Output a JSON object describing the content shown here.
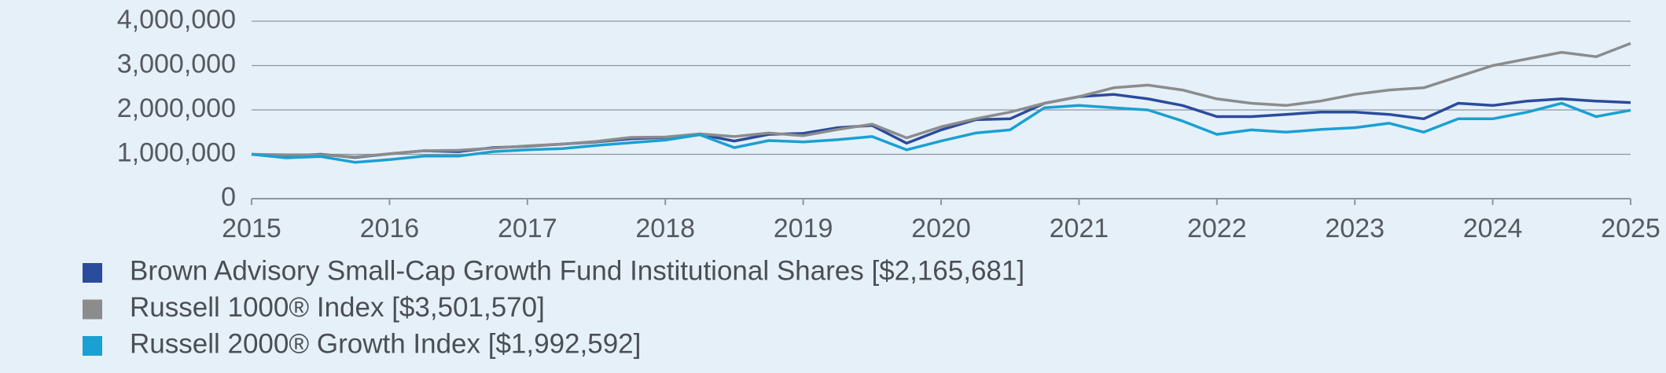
{
  "chart_data": {
    "type": "line",
    "x": [
      2015,
      2015.25,
      2015.5,
      2015.75,
      2016,
      2016.25,
      2016.5,
      2016.75,
      2017,
      2017.25,
      2017.5,
      2017.75,
      2018,
      2018.25,
      2018.5,
      2018.75,
      2019,
      2019.25,
      2019.5,
      2019.75,
      2020,
      2020.25,
      2020.5,
      2020.75,
      2021,
      2021.25,
      2021.5,
      2021.75,
      2022,
      2022.25,
      2022.5,
      2022.75,
      2023,
      2023.25,
      2023.5,
      2023.75,
      2024,
      2024.25,
      2024.5,
      2024.75,
      2025
    ],
    "series": [
      {
        "name": "Brown Advisory Small-Cap Growth Fund Institutional Shares [$2,165,681]",
        "color": "#2b4b9b",
        "values": [
          1000000,
          960000,
          1000000,
          930000,
          1010000,
          1080000,
          1060000,
          1150000,
          1180000,
          1230000,
          1280000,
          1350000,
          1380000,
          1450000,
          1300000,
          1450000,
          1470000,
          1600000,
          1650000,
          1250000,
          1550000,
          1780000,
          1800000,
          2150000,
          2300000,
          2350000,
          2250000,
          2100000,
          1850000,
          1850000,
          1900000,
          1950000,
          1950000,
          1900000,
          1800000,
          2150000,
          2100000,
          2200000,
          2250000,
          2200000,
          2165681
        ]
      },
      {
        "name": "Russell 1000® Index [$3,501,570]",
        "color": "#8c8c8c",
        "values": [
          1000000,
          990000,
          990000,
          940000,
          1010000,
          1080000,
          1090000,
          1140000,
          1190000,
          1230000,
          1290000,
          1380000,
          1390000,
          1460000,
          1400000,
          1480000,
          1420000,
          1560000,
          1680000,
          1370000,
          1620000,
          1800000,
          1950000,
          2150000,
          2300000,
          2500000,
          2560000,
          2450000,
          2250000,
          2150000,
          2100000,
          2200000,
          2350000,
          2450000,
          2500000,
          2750000,
          3000000,
          3150000,
          3300000,
          3200000,
          3501570
        ]
      },
      {
        "name": "Russell 2000® Growth Index [$1,992,592]",
        "color": "#1aa0d2",
        "values": [
          1000000,
          920000,
          950000,
          820000,
          880000,
          960000,
          960000,
          1060000,
          1100000,
          1130000,
          1200000,
          1260000,
          1320000,
          1440000,
          1150000,
          1310000,
          1280000,
          1330000,
          1400000,
          1100000,
          1300000,
          1480000,
          1550000,
          2050000,
          2100000,
          2050000,
          2000000,
          1750000,
          1450000,
          1550000,
          1500000,
          1560000,
          1600000,
          1700000,
          1500000,
          1800000,
          1800000,
          1950000,
          2150000,
          1850000,
          1992592
        ]
      }
    ],
    "xlim": [
      2015,
      2025
    ],
    "xticks": [
      2015,
      2016,
      2017,
      2018,
      2019,
      2020,
      2021,
      2022,
      2023,
      2024,
      2025
    ],
    "ylim": [
      0,
      4000000
    ],
    "yticks": [
      0,
      {
        "value": 1000000,
        "label": "1,000,000"
      },
      {
        "value": 2000000,
        "label": "2,000,000"
      },
      {
        "value": 3000000,
        "label": "3,000,000"
      },
      {
        "value": 4000000,
        "label": "4,000,000"
      }
    ],
    "grid": true
  }
}
